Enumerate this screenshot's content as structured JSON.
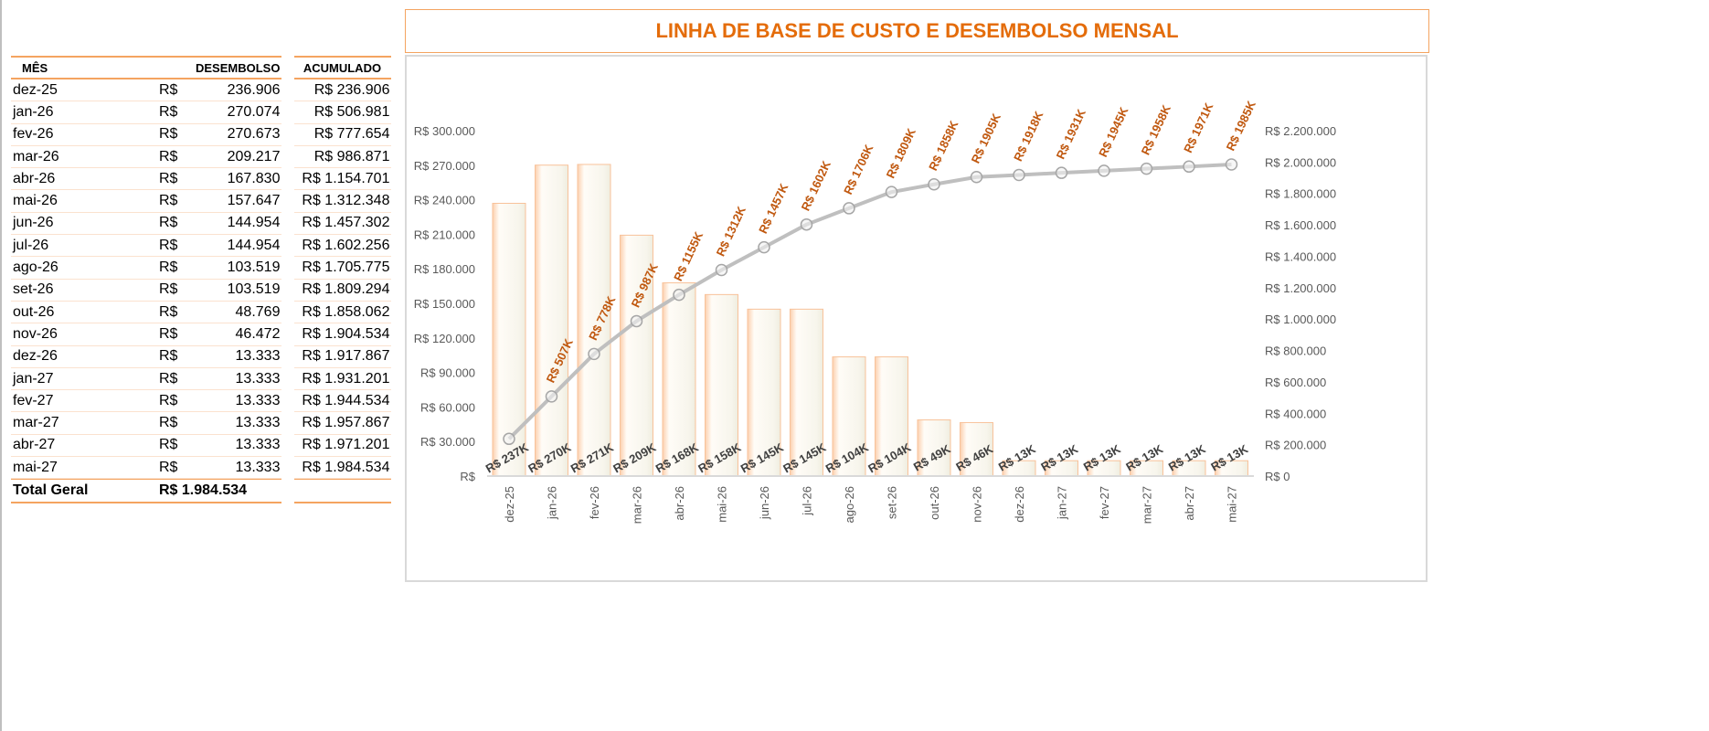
{
  "table": {
    "headers": {
      "month": "MÊS",
      "disbursement": "DESEMBOLSO",
      "accumulated": "ACUMULADO"
    },
    "currency": "R$",
    "rows": [
      {
        "month": "dez-25",
        "value": "236.906",
        "acc": "R$ 236.906"
      },
      {
        "month": "jan-26",
        "value": "270.074",
        "acc": "R$ 506.981"
      },
      {
        "month": "fev-26",
        "value": "270.673",
        "acc": "R$ 777.654"
      },
      {
        "month": "mar-26",
        "value": "209.217",
        "acc": "R$ 986.871"
      },
      {
        "month": "abr-26",
        "value": "167.830",
        "acc": "R$ 1.154.701"
      },
      {
        "month": "mai-26",
        "value": "157.647",
        "acc": "R$ 1.312.348"
      },
      {
        "month": "jun-26",
        "value": "144.954",
        "acc": "R$ 1.457.302"
      },
      {
        "month": "jul-26",
        "value": "144.954",
        "acc": "R$ 1.602.256"
      },
      {
        "month": "ago-26",
        "value": "103.519",
        "acc": "R$ 1.705.775"
      },
      {
        "month": "set-26",
        "value": "103.519",
        "acc": "R$ 1.809.294"
      },
      {
        "month": "out-26",
        "value": "48.769",
        "acc": "R$ 1.858.062"
      },
      {
        "month": "nov-26",
        "value": "46.472",
        "acc": "R$ 1.904.534"
      },
      {
        "month": "dez-26",
        "value": "13.333",
        "acc": "R$ 1.917.867"
      },
      {
        "month": "jan-27",
        "value": "13.333",
        "acc": "R$ 1.931.201"
      },
      {
        "month": "fev-27",
        "value": "13.333",
        "acc": "R$ 1.944.534"
      },
      {
        "month": "mar-27",
        "value": "13.333",
        "acc": "R$ 1.957.867"
      },
      {
        "month": "abr-27",
        "value": "13.333",
        "acc": "R$ 1.971.201"
      },
      {
        "month": "mai-27",
        "value": "13.333",
        "acc": "R$ 1.984.534"
      }
    ],
    "total_label": "Total Geral",
    "total_value": "R$ 1.984.534"
  },
  "chart_data": {
    "type": "bar+line",
    "title": "LINHA DE BASE DE CUSTO E DESEMBOLSO MENSAL",
    "categories": [
      "dez-25",
      "jan-26",
      "fev-26",
      "mar-26",
      "abr-26",
      "mai-26",
      "jun-26",
      "jul-26",
      "ago-26",
      "set-26",
      "out-26",
      "nov-26",
      "dez-26",
      "jan-27",
      "fev-27",
      "mar-27",
      "abr-27",
      "mai-27"
    ],
    "series": [
      {
        "type": "bar",
        "axis": "left",
        "values": [
          236906,
          270074,
          270673,
          209217,
          167830,
          157647,
          144954,
          144954,
          103519,
          103519,
          48769,
          46472,
          13333,
          13333,
          13333,
          13333,
          13333,
          13333
        ],
        "labels": [
          "R$ 237K",
          "R$ 270K",
          "R$ 271K",
          "R$ 209K",
          "R$ 168K",
          "R$ 158K",
          "R$ 145K",
          "R$ 145K",
          "R$ 104K",
          "R$ 104K",
          "R$ 49K",
          "R$ 46K",
          "R$ 13K",
          "R$ 13K",
          "R$ 13K",
          "R$ 13K",
          "R$ 13K",
          "R$ 13K"
        ]
      },
      {
        "type": "line",
        "axis": "right",
        "values": [
          236906,
          506981,
          777654,
          986871,
          1154701,
          1312348,
          1457302,
          1602256,
          1705775,
          1809294,
          1858062,
          1904534,
          1917867,
          1931201,
          1944534,
          1957867,
          1971201,
          1984534
        ],
        "labels": [
          null,
          "R$ 507K",
          "R$ 778K",
          "R$ 987K",
          "R$ 1155K",
          "R$ 1312K",
          "R$ 1457K",
          "R$ 1602K",
          "R$ 1706K",
          "R$ 1809K",
          "R$ 1858K",
          "R$ 1905K",
          "R$ 1918K",
          "R$ 1931K",
          "R$ 1945K",
          "R$ 1958K",
          "R$ 1971K",
          "R$ 1985K"
        ]
      }
    ],
    "left_axis": {
      "range": [
        0,
        300000
      ],
      "ticks": [
        "R$",
        "R$ 30.000",
        "R$ 60.000",
        "R$ 90.000",
        "R$ 120.000",
        "R$ 150.000",
        "R$ 180.000",
        "R$ 210.000",
        "R$ 240.000",
        "R$ 270.000",
        "R$ 300.000"
      ]
    },
    "right_axis": {
      "range": [
        0,
        2200000
      ],
      "ticks": [
        "R$ 0",
        "R$ 200.000",
        "R$ 400.000",
        "R$ 600.000",
        "R$ 800.000",
        "R$ 1.000.000",
        "R$ 1.200.000",
        "R$ 1.400.000",
        "R$ 1.600.000",
        "R$ 1.800.000",
        "R$ 2.000.000",
        "R$ 2.200.000"
      ]
    },
    "grid": false,
    "legend": "none",
    "colors": {
      "title": "#e46c0a",
      "bar_edge": "#f8c29a",
      "line": "#bfbfbf",
      "line_label": "#c0580f",
      "bar_label": "#404040",
      "axis_text": "#595959"
    }
  }
}
